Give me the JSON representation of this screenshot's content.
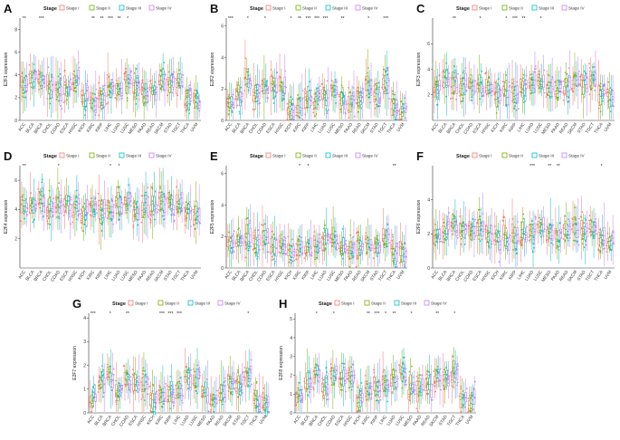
{
  "figure": {
    "legend_title": "Stage",
    "stages": [
      "Stage I",
      "Stage II",
      "Stage III",
      "Stage IV"
    ],
    "stage_colors": [
      "#F8766D",
      "#7CAE00",
      "#00BFC4",
      "#C77CFF"
    ],
    "cancer_types": [
      "ACC",
      "BLCA",
      "BRCA",
      "CHOL",
      "COAD",
      "ESCA",
      "HNSC",
      "KICH",
      "KIRC",
      "KIRP",
      "LIHC",
      "LUAD",
      "LUSC",
      "MESO",
      "PAAD",
      "READ",
      "SKCM",
      "STAD",
      "TGCT",
      "THCA",
      "UVM"
    ]
  },
  "chart_data": [
    {
      "panel": "A",
      "type": "box",
      "ylabel": "E2F1 expression",
      "ylim": [
        0,
        9
      ],
      "yticks": [
        0,
        2,
        4,
        6,
        8
      ],
      "categories": [
        "ACC",
        "BLCA",
        "BRCA",
        "CHOL",
        "COAD",
        "ESCA",
        "HNSC",
        "KICH",
        "KIRC",
        "KIRP",
        "LIHC",
        "LUAD",
        "LUSC",
        "MESO",
        "PAAD",
        "READ",
        "SKCM",
        "STAD",
        "TGCT",
        "THCA",
        "UVM"
      ],
      "medians": [
        3.2,
        3.6,
        3.8,
        2.9,
        2.7,
        3.0,
        3.3,
        2.2,
        1.8,
        2.0,
        2.6,
        3.3,
        3.5,
        2.8,
        2.4,
        2.7,
        3.6,
        3.1,
        3.4,
        1.9,
        1.6
      ],
      "significance": [
        "**",
        "",
        "***",
        "",
        "",
        "",
        "",
        "",
        "**",
        "**",
        "***",
        "**",
        "*",
        "",
        "",
        "",
        "",
        "",
        "",
        "",
        ""
      ]
    },
    {
      "panel": "B",
      "type": "box",
      "ylabel": "E2F2 expression",
      "ylim": [
        0,
        6.5
      ],
      "yticks": [
        0,
        2,
        4,
        6
      ],
      "categories": [
        "ACC",
        "BLCA",
        "BRCA",
        "CHOL",
        "COAD",
        "ESCA",
        "HNSC",
        "KICH",
        "KIRC",
        "KIRP",
        "LIHC",
        "LUAD",
        "LUSC",
        "MESO",
        "PAAD",
        "READ",
        "SKCM",
        "STAD",
        "TGCT",
        "THCA",
        "UVM"
      ],
      "medians": [
        1.2,
        1.8,
        2.5,
        1.6,
        2.2,
        2.0,
        1.9,
        0.6,
        0.9,
        1.1,
        1.3,
        1.5,
        1.9,
        1.2,
        1.0,
        1.4,
        2.0,
        1.7,
        2.3,
        0.7,
        0.6
      ],
      "significance": [
        "***",
        "",
        "*",
        "",
        "*",
        "",
        "",
        "*",
        "**",
        "***",
        "***",
        "***",
        "",
        "**",
        "",
        "",
        "*",
        "",
        "***",
        "",
        ""
      ]
    },
    {
      "panel": "C",
      "type": "box",
      "ylabel": "E2F3 expression",
      "ylim": [
        0,
        8
      ],
      "yticks": [
        2,
        4,
        6
      ],
      "categories": [
        "ACC",
        "BLCA",
        "BRCA",
        "CHOL",
        "COAD",
        "ESCA",
        "HNSC",
        "KICH",
        "KIRC",
        "KIRP",
        "LIHC",
        "LUAD",
        "LUSC",
        "MESO",
        "PAAD",
        "READ",
        "SKCM",
        "STAD",
        "TGCT",
        "THCA",
        "UVM"
      ],
      "medians": [
        2.5,
        3.2,
        3.0,
        2.8,
        2.7,
        2.6,
        2.4,
        2.1,
        2.0,
        2.2,
        2.5,
        3.0,
        3.1,
        2.6,
        2.4,
        2.6,
        2.9,
        2.7,
        3.1,
        2.0,
        1.8
      ],
      "significance": [
        "",
        "",
        "**",
        "",
        "",
        "*",
        "",
        "",
        "*",
        "***",
        "**",
        "",
        "*",
        "",
        "",
        "",
        "",
        "",
        "",
        "",
        ""
      ]
    },
    {
      "panel": "D",
      "type": "box",
      "ylabel": "E2F4 expression",
      "ylim": [
        0,
        7
      ],
      "yticks": [
        2,
        4,
        6
      ],
      "categories": [
        "ACC",
        "BLCA",
        "BRCA",
        "CHOL",
        "COAD",
        "ESCA",
        "HNSC",
        "KICH",
        "KIRC",
        "KIRP",
        "LIHC",
        "LUAD",
        "LUSC",
        "MESO",
        "PAAD",
        "READ",
        "SKCM",
        "STAD",
        "TGCT",
        "THCA",
        "UVM"
      ],
      "medians": [
        4.2,
        4.4,
        4.6,
        4.1,
        4.5,
        4.3,
        4.2,
        3.8,
        3.9,
        4.0,
        4.1,
        4.3,
        4.4,
        4.0,
        4.2,
        4.3,
        4.5,
        4.4,
        4.6,
        3.8,
        3.7
      ],
      "significance": [
        "**",
        "",
        "",
        "",
        "*",
        "",
        "",
        "",
        "",
        "",
        "*",
        "*",
        "",
        "",
        "",
        "",
        "",
        "",
        "",
        "",
        ""
      ]
    },
    {
      "panel": "E",
      "type": "box",
      "ylabel": "E2F5 expression",
      "ylim": [
        0,
        6.5
      ],
      "yticks": [
        0,
        2,
        4,
        6
      ],
      "categories": [
        "ACC",
        "BLCA",
        "BRCA",
        "CHOL",
        "COAD",
        "ESCA",
        "HNSC",
        "KICH",
        "KIRC",
        "KIRP",
        "LIHC",
        "LUAD",
        "LUSC",
        "MESO",
        "PAAD",
        "READ",
        "SKCM",
        "STAD",
        "TGCT",
        "THCA",
        "UVM"
      ],
      "medians": [
        1.4,
        1.9,
        1.8,
        1.5,
        1.7,
        1.6,
        1.5,
        0.9,
        1.1,
        1.3,
        1.4,
        1.7,
        1.8,
        1.3,
        1.2,
        1.5,
        1.8,
        1.6,
        1.9,
        1.0,
        0.9
      ],
      "significance": [
        "",
        "",
        "",
        "",
        "",
        "",
        "",
        "",
        "*",
        "*",
        "",
        "",
        "",
        "",
        "",
        "",
        "",
        "",
        "",
        "**",
        ""
      ]
    },
    {
      "panel": "F",
      "type": "box",
      "ylabel": "E2F6 expression",
      "ylim": [
        0,
        6
      ],
      "yticks": [
        0,
        2,
        4
      ],
      "categories": [
        "ACC",
        "BLCA",
        "BRCA",
        "CHOL",
        "COAD",
        "ESCA",
        "HNSC",
        "KICH",
        "KIRC",
        "KIRP",
        "LIHC",
        "LUAD",
        "LUSC",
        "MESO",
        "PAAD",
        "READ",
        "SKCM",
        "STAD",
        "TGCT",
        "THCA",
        "UVM"
      ],
      "medians": [
        2.0,
        2.3,
        2.4,
        2.1,
        2.2,
        2.1,
        2.0,
        1.6,
        1.7,
        1.8,
        1.9,
        2.2,
        2.3,
        1.9,
        1.8,
        2.0,
        2.3,
        2.1,
        2.4,
        1.6,
        1.5
      ],
      "significance": [
        "",
        "",
        "",
        "",
        "",
        "",
        "",
        "",
        "",
        "",
        "",
        "***",
        "",
        "**",
        "**",
        "",
        "",
        "",
        "",
        "*",
        ""
      ]
    },
    {
      "panel": "G",
      "type": "box",
      "ylabel": "E2F7 expression",
      "ylim": [
        0,
        4.2
      ],
      "yticks": [
        0,
        1,
        2,
        3,
        4
      ],
      "categories": [
        "ACC",
        "BLCA",
        "BRCA",
        "CHOL",
        "COAD",
        "ESCA",
        "HNSC",
        "KICH",
        "KIRC",
        "KIRP",
        "LIHC",
        "LUAD",
        "LUSC",
        "MESO",
        "PAAD",
        "READ",
        "SKCM",
        "STAD",
        "TGCT",
        "THCA",
        "UVM"
      ],
      "medians": [
        0.6,
        1.3,
        1.5,
        0.9,
        1.4,
        1.2,
        1.1,
        0.5,
        0.7,
        0.9,
        1.0,
        1.3,
        1.4,
        0.8,
        0.7,
        1.0,
        1.4,
        1.2,
        1.6,
        0.5,
        0.4
      ],
      "significance": [
        "***",
        "",
        "*",
        "",
        "**",
        "",
        "",
        "",
        "***",
        "***",
        "***",
        "",
        "",
        "",
        "",
        "",
        "",
        "",
        "*",
        "",
        ""
      ]
    },
    {
      "panel": "H",
      "type": "box",
      "ylabel": "E2F8 expression",
      "ylim": [
        0,
        5.3
      ],
      "yticks": [
        0,
        1,
        2,
        3,
        4,
        5
      ],
      "categories": [
        "ACC",
        "BLCA",
        "BRCA",
        "CHOL",
        "COAD",
        "ESCA",
        "HNSC",
        "KICH",
        "KIRC",
        "KIRP",
        "LIHC",
        "LUAD",
        "LUSC",
        "MESO",
        "PAAD",
        "READ",
        "SKCM",
        "STAD",
        "TGCT",
        "THCA",
        "UVM"
      ],
      "medians": [
        1.0,
        1.8,
        2.1,
        1.5,
        2.0,
        1.8,
        1.7,
        0.8,
        1.1,
        1.4,
        1.5,
        1.9,
        2.0,
        1.3,
        1.2,
        1.5,
        2.0,
        1.8,
        2.2,
        0.8,
        0.6
      ],
      "significance": [
        "",
        "",
        "*",
        "",
        "*",
        "",
        "",
        "",
        "**",
        "***",
        "*",
        "**",
        "",
        "*",
        "",
        "",
        "**",
        "",
        "*",
        "",
        ""
      ]
    }
  ]
}
